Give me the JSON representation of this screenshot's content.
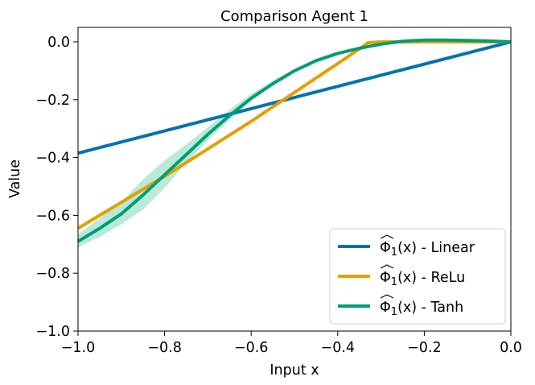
{
  "chart_data": {
    "type": "line",
    "title": "Comparison Agent 1",
    "xlabel": "Input x",
    "ylabel": "Value",
    "xlim": [
      -1.0,
      0.0
    ],
    "ylim": [
      -1.0,
      0.05
    ],
    "x_ticks": [
      -1.0,
      -0.8,
      -0.6,
      -0.4,
      -0.2,
      0.0
    ],
    "x_tick_labels": [
      "−1.0",
      "−0.8",
      "−0.6",
      "−0.4",
      "−0.2",
      "0.0"
    ],
    "y_ticks": [
      -1.0,
      -0.8,
      -0.6,
      -0.4,
      -0.2,
      0.0
    ],
    "y_tick_labels": [
      "−1.0",
      "−0.8",
      "−0.6",
      "−0.4",
      "−0.2",
      "0.0"
    ],
    "grid": false,
    "legend_position": "lower-right",
    "series": [
      {
        "name": "Φ₁(x) - Linear",
        "legend_prefix": "Φ",
        "legend_sub": "1",
        "legend_suffix": "(x) - Linear",
        "color": "#0072b2",
        "x": [
          -1.0,
          0.0
        ],
        "y": [
          -0.385,
          0.0
        ]
      },
      {
        "name": "Φ₁(x) - ReLu",
        "legend_prefix": "Φ",
        "legend_sub": "1",
        "legend_suffix": "(x) - ReLu",
        "color": "#e69f00",
        "x": [
          -1.0,
          -0.9,
          -0.8,
          -0.7,
          -0.6,
          -0.5,
          -0.4,
          -0.35,
          -0.33,
          -0.3,
          -0.2,
          -0.1,
          0.0
        ],
        "y": [
          -0.645,
          -0.555,
          -0.465,
          -0.37,
          -0.275,
          -0.175,
          -0.075,
          -0.025,
          -0.003,
          0.0,
          0.0,
          0.0,
          0.0
        ]
      },
      {
        "name": "Φ₁(x) - Tanh",
        "legend_prefix": "Φ",
        "legend_sub": "1",
        "legend_suffix": "(x) - Tanh",
        "color": "#009e73",
        "x": [
          -1.0,
          -0.95,
          -0.9,
          -0.85,
          -0.8,
          -0.75,
          -0.7,
          -0.65,
          -0.6,
          -0.55,
          -0.5,
          -0.45,
          -0.4,
          -0.35,
          -0.3,
          -0.25,
          -0.2,
          -0.15,
          -0.1,
          -0.05,
          0.0
        ],
        "y": [
          -0.69,
          -0.645,
          -0.595,
          -0.53,
          -0.46,
          -0.39,
          -0.32,
          -0.255,
          -0.195,
          -0.145,
          -0.1,
          -0.065,
          -0.04,
          -0.022,
          -0.008,
          0.002,
          0.006,
          0.006,
          0.005,
          0.003,
          0.0
        ],
        "band_lower": [
          -0.71,
          -0.675,
          -0.63,
          -0.58,
          -0.505,
          -0.42,
          -0.34,
          -0.27,
          -0.205,
          -0.15,
          -0.103,
          -0.067,
          -0.041,
          -0.023,
          -0.009,
          0.001,
          0.005,
          0.005,
          0.004,
          0.002,
          0.0
        ],
        "band_upper": [
          -0.665,
          -0.61,
          -0.555,
          -0.475,
          -0.41,
          -0.355,
          -0.295,
          -0.235,
          -0.18,
          -0.135,
          -0.095,
          -0.062,
          -0.038,
          -0.02,
          -0.006,
          0.003,
          0.007,
          0.007,
          0.006,
          0.004,
          0.0
        ],
        "band_color": "#a8e4cf"
      }
    ]
  }
}
